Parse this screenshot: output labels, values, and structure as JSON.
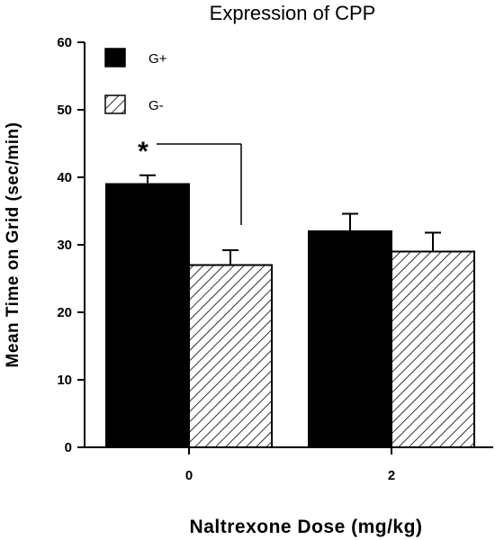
{
  "chart_data": {
    "type": "bar",
    "title": "Expression of CPP",
    "xlabel": "Naltrexone Dose (mg/kg)",
    "ylabel": "Mean Time on Grid (sec/min)",
    "categories": [
      "0",
      "2"
    ],
    "ylim": [
      0,
      60
    ],
    "yticks": [
      0,
      10,
      20,
      30,
      40,
      50,
      60
    ],
    "grid": false,
    "legend_placement": "top-left",
    "series": [
      {
        "name": "G+",
        "fill": "solid",
        "color": "#000000",
        "values": [
          39,
          32
        ],
        "errors": [
          1.3,
          2.6
        ]
      },
      {
        "name": "G-",
        "fill": "hatched",
        "color": "#000000",
        "values": [
          27,
          29
        ],
        "errors": [
          2.2,
          2.8
        ]
      }
    ],
    "annotations": [
      {
        "text": "*",
        "category": "0",
        "note": "bracket between G+ and G-"
      }
    ]
  }
}
